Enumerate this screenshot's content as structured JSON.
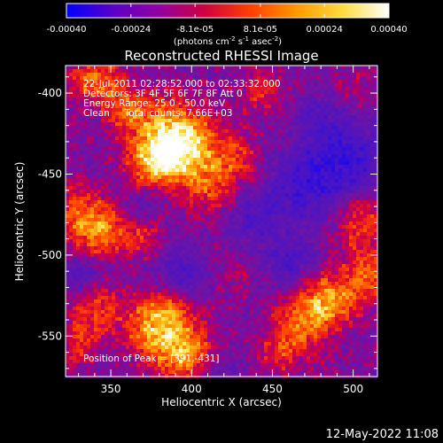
{
  "chart_data": {
    "type": "heatmap",
    "title": "Reconstructed RHESSI Image",
    "xlabel": "Heliocentric X (arcsec)",
    "ylabel": "Heliocentric Y (arcsec)",
    "xlim": [
      322,
      515
    ],
    "ylim": [
      -575,
      -383
    ],
    "x_ticks": [
      350,
      400,
      450,
      500
    ],
    "y_ticks": [
      -550,
      -500,
      -450,
      -400
    ],
    "colorbar": {
      "range": [
        -0.0004,
        0.0004
      ],
      "tick_values": [
        -0.0004,
        -0.00024,
        -8.1e-05,
        8.1e-05,
        0.00024,
        0.0004
      ],
      "tick_labels": [
        "-0.00040",
        "-0.00024",
        "-8.1e-05",
        "8.1e-05",
        "0.00024",
        "0.00040"
      ],
      "unit_label": [
        "(photons cm",
        "-2",
        " s",
        "-1",
        " asec",
        "-2",
        ")"
      ],
      "colors": [
        "#0000ff",
        "#5a00c8",
        "#9000a0",
        "#d00040",
        "#ff4000",
        "#ff9a00",
        "#ffdc40",
        "#ffffff"
      ]
    },
    "annotations": {
      "time_range": "22-Jul-2011 02:28:52.000 to 02:33:32.000",
      "detectors": "Detectors: 3F 4F 5F 6F 7F 8F Att 0",
      "energy": "Energy Range: 25.0 - 50.0 keV",
      "method": "Clean     Total counts: 7.66E+03",
      "peak": "Position of Peak = [391,-431]"
    },
    "peak": {
      "x": 391,
      "y": -431
    },
    "hotspots": [
      {
        "x": 392,
        "y": -430,
        "amp": 1.0,
        "r": 16
      },
      {
        "x": 375,
        "y": -443,
        "amp": 0.55,
        "r": 12
      },
      {
        "x": 362,
        "y": -410,
        "amp": 0.45,
        "r": 11
      },
      {
        "x": 340,
        "y": -392,
        "amp": 0.55,
        "r": 12
      },
      {
        "x": 412,
        "y": -458,
        "amp": 0.4,
        "r": 12
      },
      {
        "x": 428,
        "y": -440,
        "amp": 0.35,
        "r": 10
      },
      {
        "x": 442,
        "y": -398,
        "amp": 0.35,
        "r": 10
      },
      {
        "x": 330,
        "y": -475,
        "amp": 0.45,
        "r": 13
      },
      {
        "x": 345,
        "y": -487,
        "amp": 0.5,
        "r": 12
      },
      {
        "x": 370,
        "y": -488,
        "amp": 0.35,
        "r": 10
      },
      {
        "x": 505,
        "y": -480,
        "amp": 0.45,
        "r": 12
      },
      {
        "x": 508,
        "y": -515,
        "amp": 0.5,
        "r": 12
      },
      {
        "x": 342,
        "y": -533,
        "amp": 0.4,
        "r": 11
      },
      {
        "x": 375,
        "y": -545,
        "amp": 0.55,
        "r": 13
      },
      {
        "x": 395,
        "y": -560,
        "amp": 0.7,
        "r": 13
      },
      {
        "x": 385,
        "y": -532,
        "amp": 0.4,
        "r": 10
      },
      {
        "x": 470,
        "y": -540,
        "amp": 0.55,
        "r": 13
      },
      {
        "x": 485,
        "y": -527,
        "amp": 0.5,
        "r": 11
      },
      {
        "x": 455,
        "y": -560,
        "amp": 0.35,
        "r": 10
      },
      {
        "x": 420,
        "y": -510,
        "amp": 0.2,
        "r": 10
      },
      {
        "x": 500,
        "y": -395,
        "amp": 0.15,
        "r": 9
      },
      {
        "x": 330,
        "y": -555,
        "amp": 0.35,
        "r": 10
      }
    ],
    "coldspots": [
      {
        "x": 472,
        "y": -455,
        "amp": 0.55,
        "r": 16
      },
      {
        "x": 500,
        "y": -440,
        "amp": 0.5,
        "r": 14
      },
      {
        "x": 440,
        "y": -478,
        "amp": 0.35,
        "r": 12
      },
      {
        "x": 395,
        "y": -512,
        "amp": 0.35,
        "r": 13
      },
      {
        "x": 460,
        "y": -505,
        "amp": 0.35,
        "r": 11
      },
      {
        "x": 370,
        "y": -470,
        "amp": 0.25,
        "r": 10
      },
      {
        "x": 330,
        "y": -510,
        "amp": 0.3,
        "r": 10
      },
      {
        "x": 480,
        "y": -415,
        "amp": 0.3,
        "r": 11
      },
      {
        "x": 415,
        "y": -575,
        "amp": 0.25,
        "r": 10
      }
    ]
  },
  "footer": {
    "date": "12-May-2022 11:08"
  }
}
